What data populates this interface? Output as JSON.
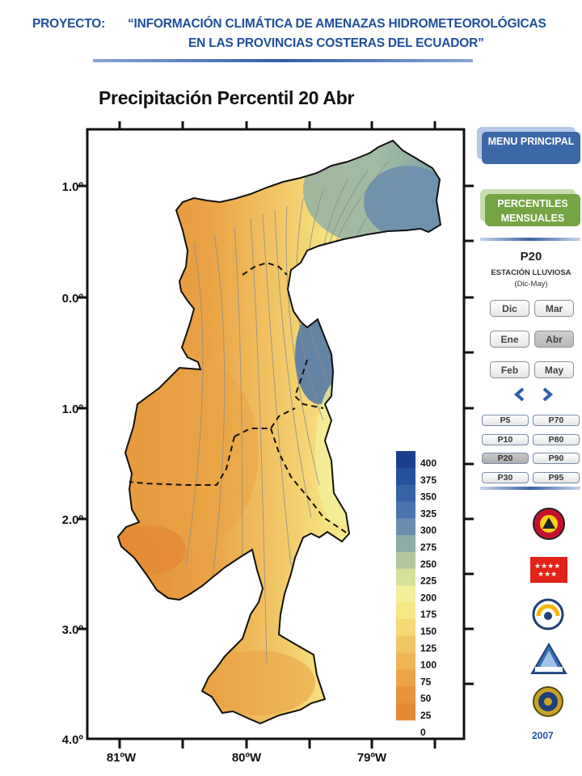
{
  "header": {
    "project_label": "PROYECTO:",
    "title_line1": "“INFORMACIÓN CLIMÁTICA DE AMENAZAS HIDROMETEOROLÓGICAS",
    "title_line2": "EN LAS PROVINCIAS COSTERAS DEL ECUADOR”"
  },
  "map": {
    "title": "Precipitación Percentil 20 Abr",
    "lat_labels": [
      "1.0º",
      "0.0º",
      "1.0º",
      "2.0º",
      "3.0º",
      "4.0º"
    ],
    "lon_labels": [
      "81ºW",
      "80ºW",
      "79ºW"
    ],
    "legend_values": [
      "400",
      "375",
      "350",
      "325",
      "300",
      "275",
      "250",
      "225",
      "200",
      "175",
      "150",
      "125",
      "100",
      "75",
      "50",
      "25",
      "0"
    ],
    "legend_colors": [
      "#1b3f8c",
      "#25509b",
      "#3563a6",
      "#4974ac",
      "#6a8fae",
      "#8caea6",
      "#b3c79d",
      "#d6df9a",
      "#f3ef9a",
      "#f8e786",
      "#f6d876",
      "#f1c766",
      "#edb555",
      "#eaa445",
      "#e6953c",
      "#e38934"
    ],
    "fill_colors": {
      "dry": "#e38934",
      "mid": "#edb555",
      "wet": "#f3ef9a",
      "humid": "#8caea6",
      "very_wet": "#3563a6"
    }
  },
  "sidebar": {
    "menu_label": "MENU PRINCIPAL",
    "percentiles_label": "PERCENTILES MENSUALES",
    "current_percentile": "P20",
    "season": "ESTACIÓN LLUVIOSA",
    "season_range": "(Dic-May)",
    "months": [
      "Dic",
      "Mar",
      "Ene",
      "Abr",
      "Feb",
      "May"
    ],
    "selected_month": "Abr",
    "percentiles": [
      "P5",
      "P70",
      "P10",
      "P80",
      "P20",
      "P90",
      "P30",
      "P95"
    ],
    "selected_percentile": "P20",
    "year": "2007",
    "logos": [
      "emergency-logo",
      "flag-logo",
      "agency-logo",
      "inamhi-logo",
      "navy-seal-logo"
    ]
  }
}
